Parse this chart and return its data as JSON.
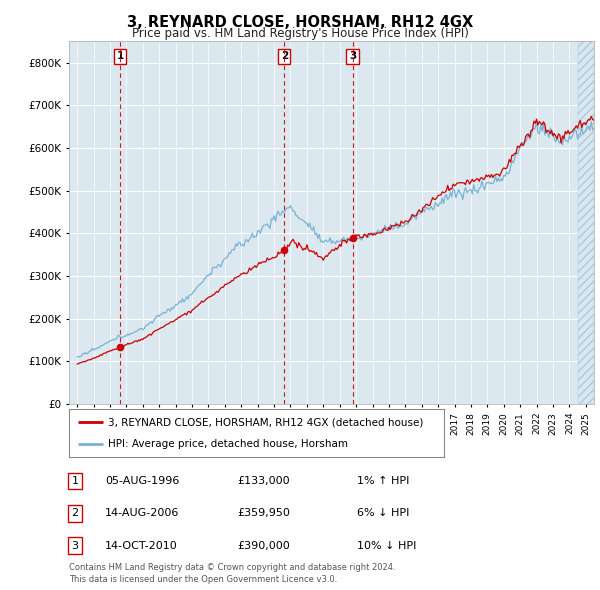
{
  "title": "3, REYNARD CLOSE, HORSHAM, RH12 4GX",
  "subtitle": "Price paid vs. HM Land Registry's House Price Index (HPI)",
  "transactions": [
    {
      "label": "1",
      "date_dec": 1996.62,
      "price": 133000,
      "date_str": "05-AUG-1996",
      "price_str": "£133,000",
      "hpi_str": "1% ↑ HPI"
    },
    {
      "label": "2",
      "date_dec": 2006.62,
      "price": 359950,
      "date_str": "14-AUG-2006",
      "price_str": "£359,950",
      "hpi_str": "6% ↓ HPI"
    },
    {
      "label": "3",
      "date_dec": 2010.79,
      "price": 390000,
      "date_str": "14-OCT-2010",
      "price_str": "£390,000",
      "hpi_str": "10% ↓ HPI"
    }
  ],
  "hpi_color": "#7ab3d4",
  "price_color": "#cc0000",
  "vline_color": "#cc0000",
  "bg_color": "#ffffff",
  "plot_bg_color": "#dce8f0",
  "grid_color": "#ffffff",
  "ylim": [
    0,
    850000
  ],
  "yticks": [
    0,
    100000,
    200000,
    300000,
    400000,
    500000,
    600000,
    700000,
    800000
  ],
  "ytick_labels": [
    "£0",
    "£100K",
    "£200K",
    "£300K",
    "£400K",
    "£500K",
    "£600K",
    "£700K",
    "£800K"
  ],
  "xlim_start": 1993.5,
  "xlim_end": 2025.5,
  "hatch_start": 2024.5,
  "legend_label_price": "3, REYNARD CLOSE, HORSHAM, RH12 4GX (detached house)",
  "legend_label_hpi": "HPI: Average price, detached house, Horsham",
  "footer_line1": "Contains HM Land Registry data © Crown copyright and database right 2024.",
  "footer_line2": "This data is licensed under the Open Government Licence v3.0."
}
